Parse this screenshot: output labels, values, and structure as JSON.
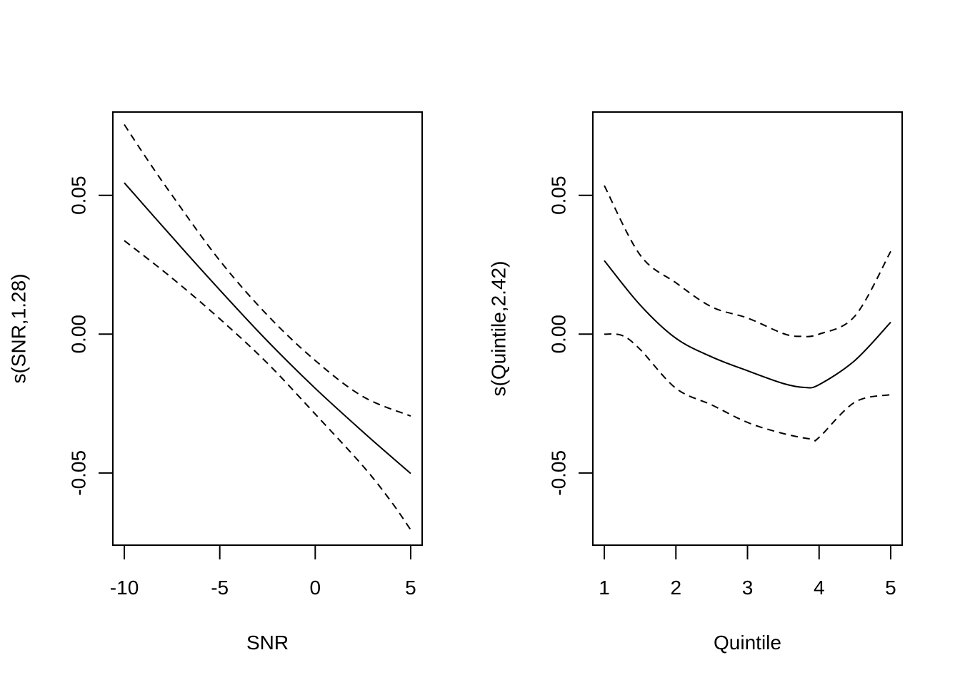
{
  "chart_data": [
    {
      "type": "line",
      "xlabel": "SNR",
      "ylabel": "s(SNR,1.28)",
      "xlim": [
        -10.6,
        5.6
      ],
      "ylim": [
        -0.076,
        0.08
      ],
      "xticks": [
        -10,
        -5,
        0,
        5
      ],
      "xtick_labels": [
        "-10",
        "-5",
        "0",
        "5"
      ],
      "yticks": [
        -0.05,
        0.0,
        0.05
      ],
      "ytick_labels": [
        "-0.05",
        "0.00",
        "0.05"
      ],
      "grid": false,
      "series": [
        {
          "role": "fit",
          "style": "solid",
          "x": [
            -10,
            -7.5,
            -5,
            -2.5,
            0,
            2.5,
            5
          ],
          "values": [
            0.0545,
            0.035,
            0.0159,
            -0.0025,
            -0.0195,
            -0.0352,
            -0.0502
          ]
        },
        {
          "role": "upper",
          "style": "dashed",
          "x": [
            -10,
            -9,
            -7.5,
            -5,
            -2.5,
            0,
            2.5,
            5
          ],
          "values": [
            0.0755,
            0.065,
            0.05,
            0.0265,
            0.0068,
            -0.0095,
            -0.0225,
            -0.0295
          ]
        },
        {
          "role": "lower",
          "style": "dashed",
          "x": [
            -10,
            -7.5,
            -5,
            -2.5,
            0,
            2.5,
            4,
            5
          ],
          "values": [
            0.0337,
            0.0202,
            0.0055,
            -0.0105,
            -0.0288,
            -0.0475,
            -0.0605,
            -0.0705
          ]
        }
      ]
    },
    {
      "type": "line",
      "xlabel": "Quintile",
      "ylabel": "s(Quintile,2.42)",
      "xlim": [
        0.84,
        5.16
      ],
      "ylim": [
        -0.076,
        0.08
      ],
      "xticks": [
        1,
        2,
        3,
        4,
        5
      ],
      "xtick_labels": [
        "1",
        "2",
        "3",
        "4",
        "5"
      ],
      "yticks": [
        -0.05,
        0.0,
        0.05
      ],
      "ytick_labels": [
        "-0.05",
        "0.00",
        "0.05"
      ],
      "grid": false,
      "series": [
        {
          "role": "fit",
          "style": "solid",
          "x": [
            1,
            1.5,
            2,
            2.5,
            3,
            3.5,
            3.8,
            4,
            4.5,
            5
          ],
          "values": [
            0.0265,
            0.0105,
            -0.0015,
            -0.0082,
            -0.0132,
            -0.0178,
            -0.0192,
            -0.0182,
            -0.0095,
            0.0043
          ]
        },
        {
          "role": "upper",
          "style": "dashed",
          "x": [
            1,
            1.5,
            2,
            2.5,
            3,
            3.5,
            3.75,
            4,
            4.5,
            5
          ],
          "values": [
            0.0535,
            0.0285,
            0.0185,
            0.0098,
            0.0058,
            0.0002,
            -0.0008,
            0.0,
            0.0065,
            0.0298
          ]
        },
        {
          "role": "lower",
          "style": "dashed",
          "x": [
            1,
            1.25,
            1.5,
            2,
            2.5,
            3,
            3.5,
            3.9,
            4,
            4.5,
            5
          ],
          "values": [
            0.0,
            -0.0005,
            -0.0055,
            -0.0195,
            -0.0255,
            -0.0318,
            -0.0358,
            -0.0378,
            -0.0372,
            -0.0245,
            -0.0218
          ]
        }
      ]
    }
  ]
}
